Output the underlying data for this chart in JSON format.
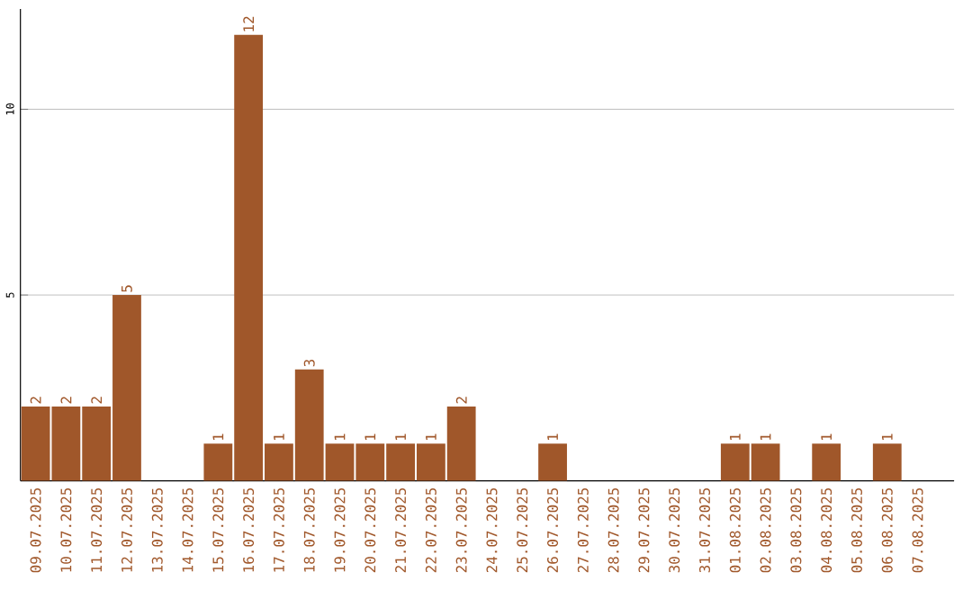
{
  "chart_data": {
    "type": "bar",
    "categories": [
      "09.07.2025",
      "10.07.2025",
      "11.07.2025",
      "12.07.2025",
      "13.07.2025",
      "14.07.2025",
      "15.07.2025",
      "16.07.2025",
      "17.07.2025",
      "18.07.2025",
      "19.07.2025",
      "20.07.2025",
      "21.07.2025",
      "22.07.2025",
      "23.07.2025",
      "24.07.2025",
      "25.07.2025",
      "26.07.2025",
      "27.07.2025",
      "28.07.2025",
      "29.07.2025",
      "30.07.2025",
      "31.07.2025",
      "01.08.2025",
      "02.08.2025",
      "03.08.2025",
      "04.08.2025",
      "05.08.2025",
      "06.08.2025",
      "07.08.2025"
    ],
    "values": [
      2,
      2,
      2,
      5,
      0,
      0,
      1,
      12,
      1,
      3,
      1,
      1,
      1,
      1,
      2,
      0,
      0,
      1,
      0,
      0,
      0,
      0,
      0,
      1,
      1,
      0,
      1,
      0,
      1,
      0
    ],
    "value_labels": [
      "2",
      "2",
      "2",
      "5",
      null,
      null,
      "1",
      "12",
      "1",
      "3",
      "1",
      "1",
      "1",
      "1",
      "2",
      null,
      null,
      "1",
      null,
      null,
      null,
      null,
      null,
      "1",
      "1",
      null,
      "1",
      null,
      "1",
      null
    ],
    "color": "#a0572a",
    "ylim": [
      0,
      12.7
    ],
    "yticks": [
      5,
      10
    ],
    "grid": "y"
  }
}
